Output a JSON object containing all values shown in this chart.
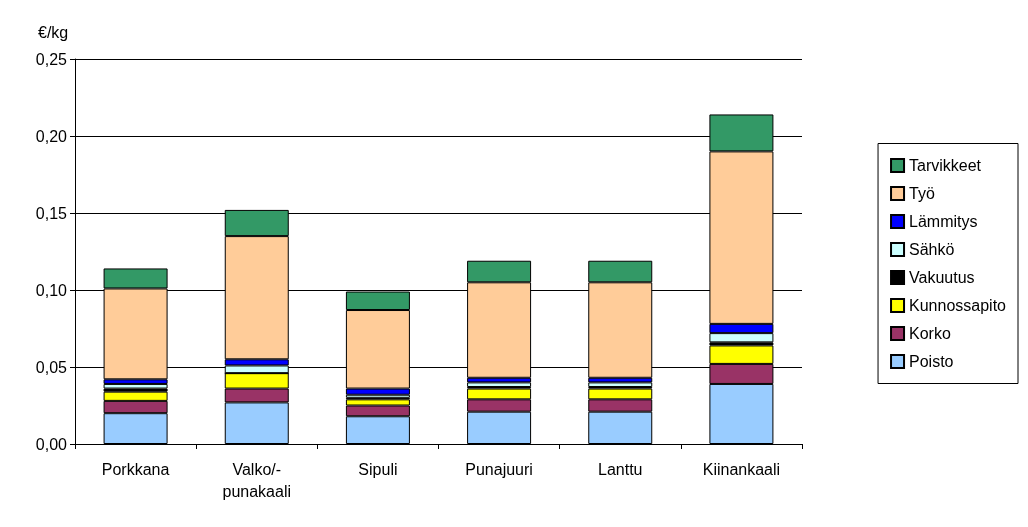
{
  "chart_data": {
    "type": "bar",
    "stacked": true,
    "ylabel": "€/kg",
    "categories": [
      "Porkkana",
      "Valko/-\npunakaali",
      "Sipuli",
      "Punajuuri",
      "Lanttu",
      "Kiinankaali"
    ],
    "series": [
      {
        "name": "Poisto",
        "color": "#99ccff",
        "values": [
          0.02,
          0.027,
          0.018,
          0.021,
          0.021,
          0.039
        ]
      },
      {
        "name": "Korko",
        "color": "#993366",
        "values": [
          0.008,
          0.009,
          0.007,
          0.008,
          0.008,
          0.013
        ]
      },
      {
        "name": "Kunnossapito",
        "color": "#ffff00",
        "values": [
          0.006,
          0.01,
          0.004,
          0.007,
          0.007,
          0.012
        ]
      },
      {
        "name": "Vakuutus",
        "color": "#000000",
        "values": [
          0.002,
          0.0,
          0.001,
          0.001,
          0.001,
          0.002
        ]
      },
      {
        "name": "Sähkö",
        "color": "#ccffff",
        "values": [
          0.003,
          0.005,
          0.002,
          0.003,
          0.003,
          0.006
        ]
      },
      {
        "name": "Lämmitys",
        "color": "#0000ff",
        "values": [
          0.003,
          0.004,
          0.004,
          0.003,
          0.003,
          0.006
        ]
      },
      {
        "name": "Työ",
        "color": "#ffcc99",
        "values": [
          0.059,
          0.08,
          0.051,
          0.062,
          0.062,
          0.112
        ]
      },
      {
        "name": "Tarvikkeet",
        "color": "#339966",
        "values": [
          0.013,
          0.017,
          0.012,
          0.014,
          0.014,
          0.024
        ]
      }
    ],
    "ylim": [
      0,
      0.25
    ],
    "yticks": [
      {
        "value": 0,
        "label": "0,00"
      },
      {
        "value": 0.05,
        "label": "0,05"
      },
      {
        "value": 0.1,
        "label": "0,10"
      },
      {
        "value": 0.15,
        "label": "0,15"
      },
      {
        "value": 0.2,
        "label": "0,20"
      },
      {
        "value": 0.25,
        "label": "0,25"
      }
    ],
    "grid": "y",
    "legend": "right"
  }
}
